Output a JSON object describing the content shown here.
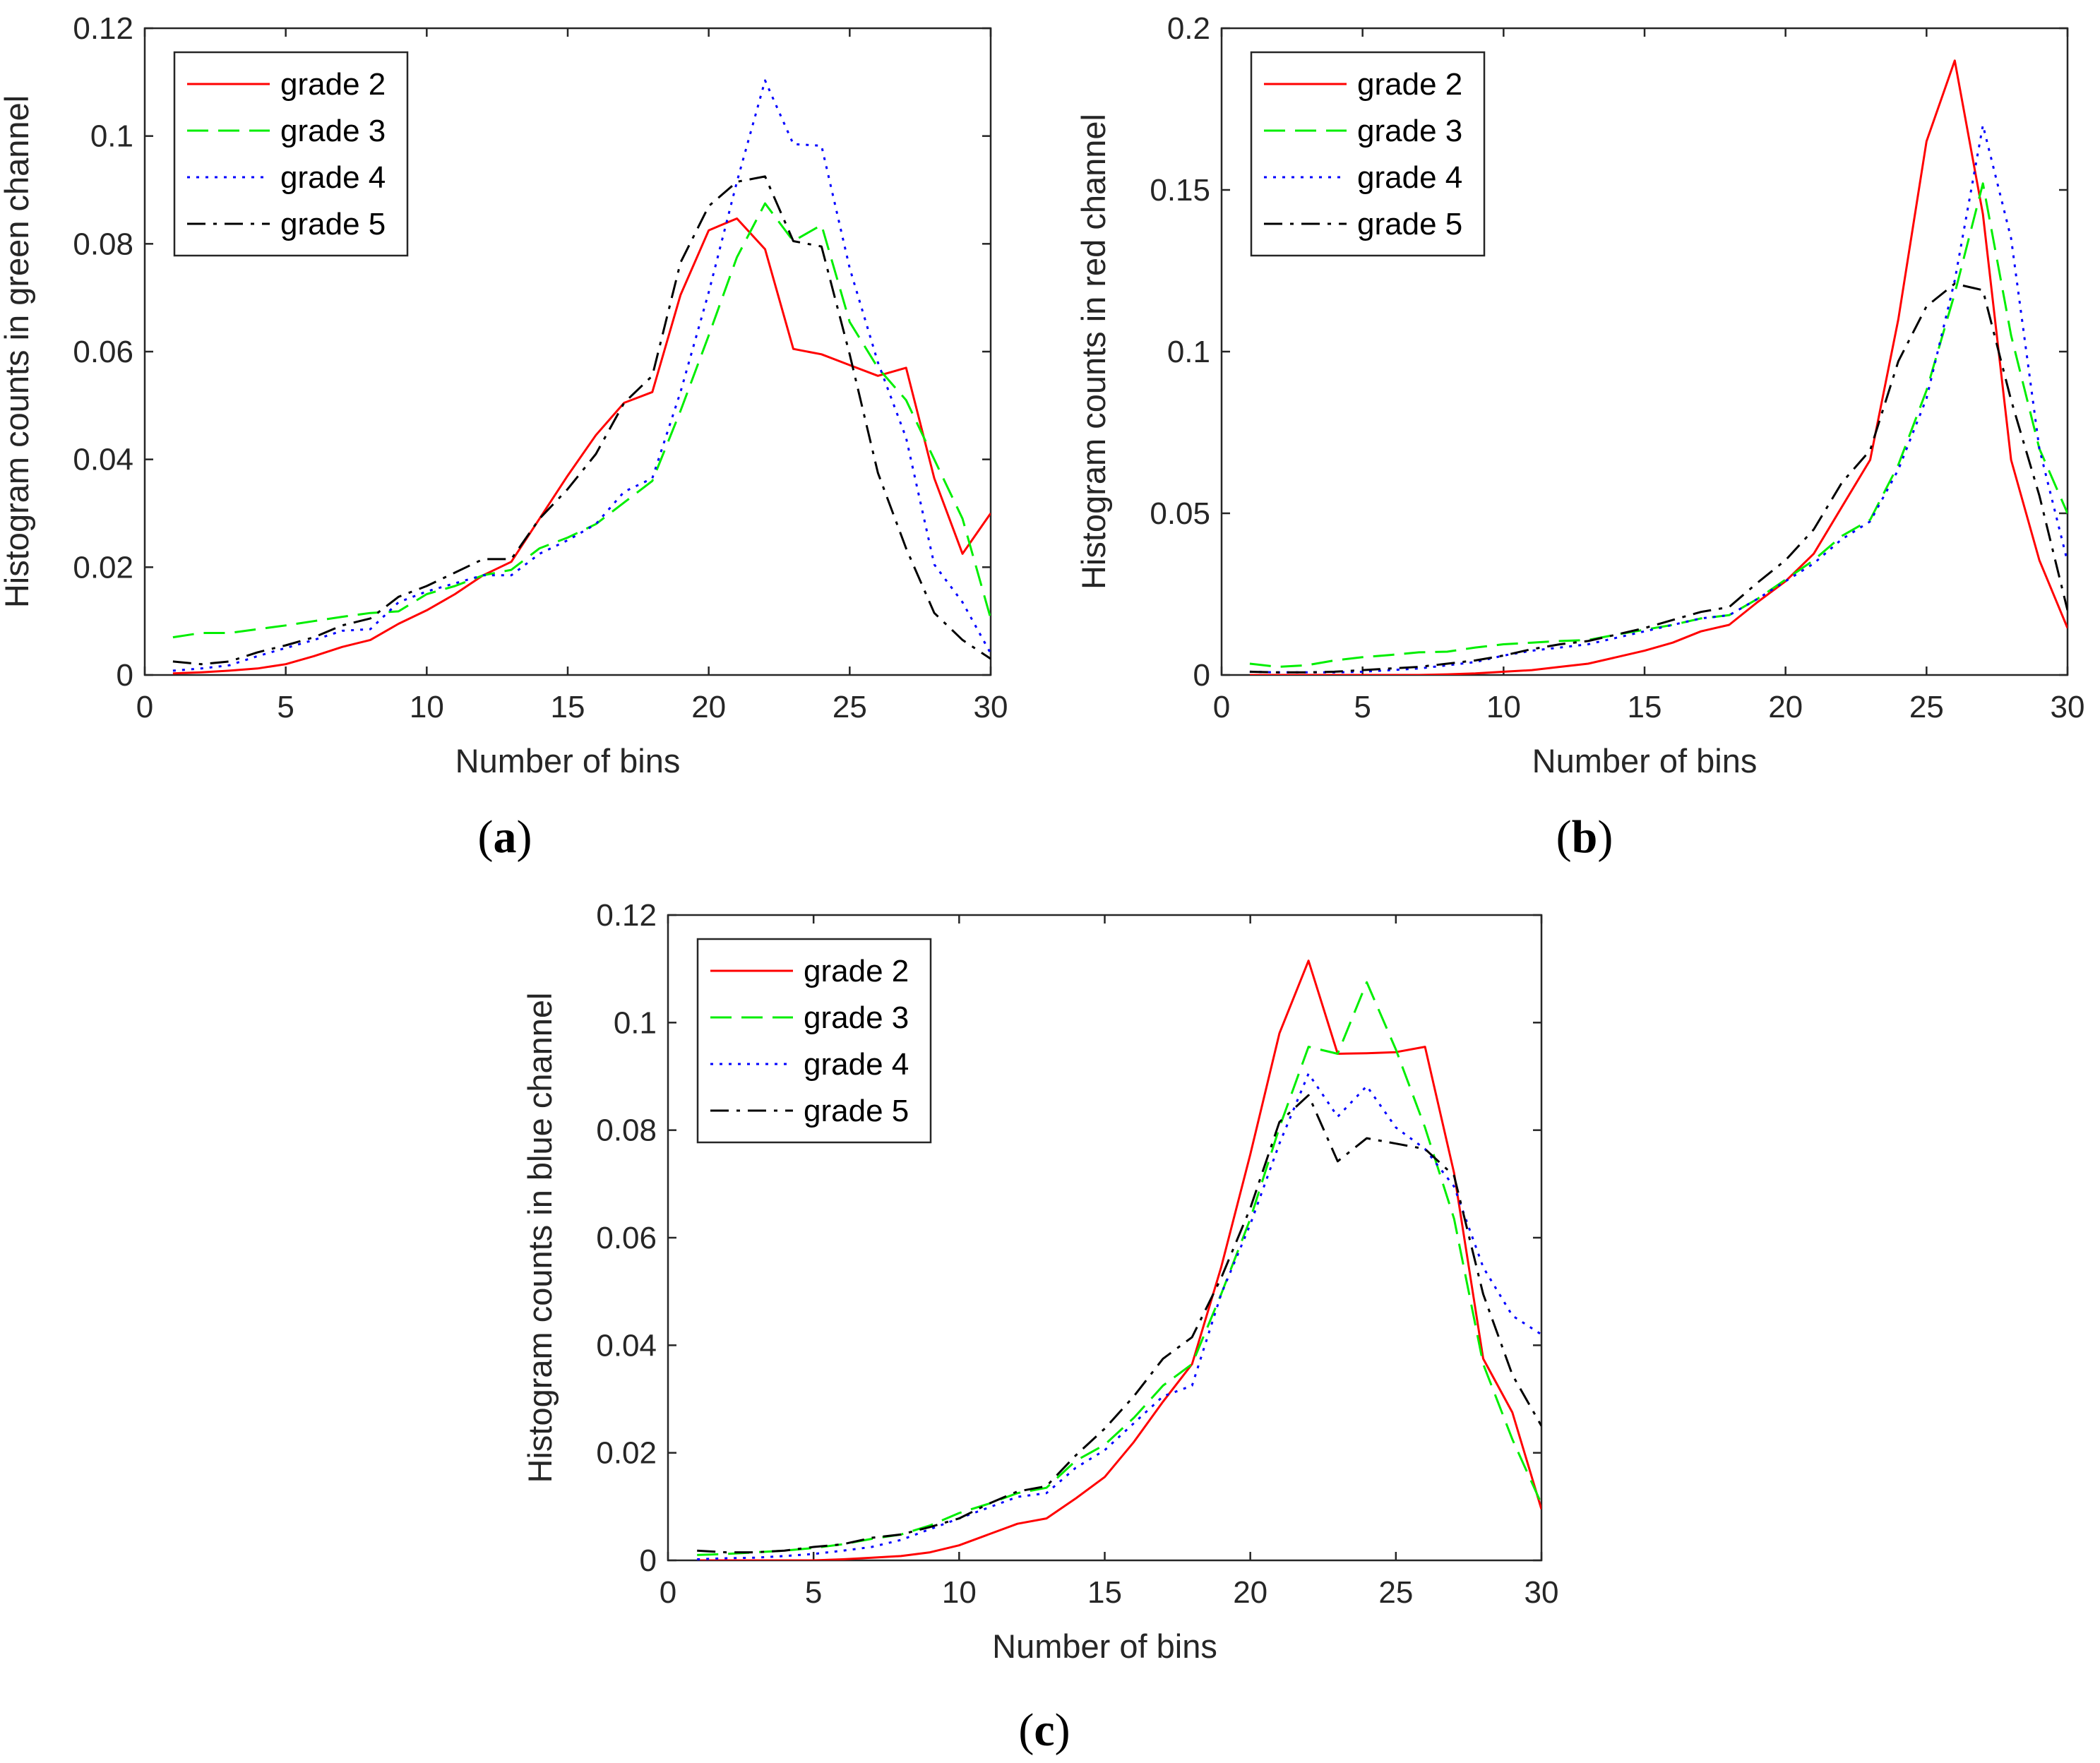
{
  "figure": {
    "panels": [
      {
        "id": "a",
        "label_open": "(",
        "label_letter": "a",
        "label_close": ")"
      },
      {
        "id": "b",
        "label_open": "(",
        "label_letter": "b",
        "label_close": ")"
      },
      {
        "id": "c",
        "label_open": "(",
        "label_letter": "c",
        "label_close": ")"
      }
    ]
  },
  "colors": {
    "grade 2": "#ff0000",
    "grade 3": "#00ee00",
    "grade 4": "#0000ff",
    "grade 5": "#000000"
  },
  "chart_data": [
    {
      "type": "line",
      "panel": "a",
      "title": "",
      "xlabel": "Number of bins",
      "ylabel": "Histogram counts in green channel",
      "xlim": [
        0,
        30
      ],
      "ylim": [
        0,
        0.12
      ],
      "xticks": [
        0,
        5,
        10,
        15,
        20,
        25,
        30
      ],
      "xtick_labels": [
        "0",
        "5",
        "10",
        "15",
        "20",
        "25",
        "30"
      ],
      "yticks": [
        0,
        0.02,
        0.04,
        0.06,
        0.08,
        0.1,
        0.12
      ],
      "ytick_labels": [
        "0",
        "0.02",
        "0.04",
        "0.06",
        "0.08",
        "0.1",
        "0.12"
      ],
      "legend_position": "top-left",
      "x": [
        1,
        2,
        3,
        4,
        5,
        6,
        7,
        8,
        9,
        10,
        11,
        12,
        13,
        14,
        15,
        16,
        17,
        18,
        19,
        20,
        21,
        22,
        23,
        24,
        25,
        26,
        27,
        28,
        29,
        30
      ],
      "series": [
        {
          "name": "grade 2",
          "style": "solid",
          "values": [
            0.0003,
            0.0005,
            0.0008,
            0.0012,
            0.002,
            0.0035,
            0.0052,
            0.0065,
            0.0095,
            0.012,
            0.015,
            0.0185,
            0.021,
            0.029,
            0.037,
            0.0445,
            0.0505,
            0.0525,
            0.0705,
            0.0825,
            0.0847,
            0.079,
            0.0605,
            0.0595,
            0.0575,
            0.0555,
            0.057,
            0.0365,
            0.0225,
            0.03
          ]
        },
        {
          "name": "grade 3",
          "style": "dashed",
          "values": [
            0.007,
            0.0078,
            0.0078,
            0.0085,
            0.0092,
            0.01,
            0.0108,
            0.0115,
            0.0118,
            0.015,
            0.0165,
            0.0185,
            0.0195,
            0.0235,
            0.0255,
            0.028,
            0.032,
            0.036,
            0.049,
            0.063,
            0.0775,
            0.0875,
            0.0805,
            0.0835,
            0.0655,
            0.057,
            0.051,
            0.04,
            0.029,
            0.0105
          ]
        },
        {
          "name": "grade 4",
          "style": "dotted",
          "values": [
            0.0008,
            0.0012,
            0.0018,
            0.0035,
            0.005,
            0.0065,
            0.0082,
            0.0085,
            0.0135,
            0.0155,
            0.017,
            0.0185,
            0.0185,
            0.0225,
            0.025,
            0.028,
            0.034,
            0.0365,
            0.0525,
            0.071,
            0.0915,
            0.1103,
            0.0985,
            0.0982,
            0.0755,
            0.058,
            0.044,
            0.0205,
            0.0135,
            0.004
          ]
        },
        {
          "name": "grade 5",
          "style": "dashdot",
          "values": [
            0.0025,
            0.002,
            0.0025,
            0.0042,
            0.0055,
            0.007,
            0.0092,
            0.0105,
            0.0145,
            0.0165,
            0.019,
            0.0215,
            0.0215,
            0.029,
            0.0345,
            0.041,
            0.0505,
            0.0555,
            0.0765,
            0.087,
            0.0915,
            0.0925,
            0.0805,
            0.0795,
            0.0595,
            0.0375,
            0.0235,
            0.0115,
            0.0065,
            0.003
          ]
        }
      ]
    },
    {
      "type": "line",
      "panel": "b",
      "title": "",
      "xlabel": "Number of bins",
      "ylabel": "Histogram counts in red channel",
      "xlim": [
        0,
        30
      ],
      "ylim": [
        0,
        0.2
      ],
      "xticks": [
        0,
        5,
        10,
        15,
        20,
        25,
        30
      ],
      "xtick_labels": [
        "0",
        "5",
        "10",
        "15",
        "20",
        "25",
        "30"
      ],
      "yticks": [
        0,
        0.05,
        0.1,
        0.15,
        0.2
      ],
      "ytick_labels": [
        "0",
        "0.05",
        "0.1",
        "0.15",
        "0.2"
      ],
      "legend_position": "top-left",
      "x": [
        1,
        2,
        3,
        4,
        5,
        6,
        7,
        8,
        9,
        10,
        11,
        12,
        13,
        14,
        15,
        16,
        17,
        18,
        19,
        20,
        21,
        22,
        23,
        24,
        25,
        26,
        27,
        28,
        29,
        30
      ],
      "series": [
        {
          "name": "grade 2",
          "style": "solid",
          "values": [
            0,
            0,
            0,
            0,
            0,
            0,
            0,
            0.0002,
            0.0005,
            0.001,
            0.0015,
            0.0025,
            0.0035,
            0.0055,
            0.0075,
            0.01,
            0.0135,
            0.0155,
            0.0225,
            0.029,
            0.0375,
            0.052,
            0.0665,
            0.11,
            0.165,
            0.19,
            0.1425,
            0.0665,
            0.0355,
            0.0145
          ]
        },
        {
          "name": "grade 3",
          "style": "dashed",
          "values": [
            0.0035,
            0.0025,
            0.003,
            0.0045,
            0.0055,
            0.0062,
            0.007,
            0.0072,
            0.0085,
            0.0095,
            0.01,
            0.0105,
            0.0108,
            0.0125,
            0.014,
            0.0155,
            0.0175,
            0.0185,
            0.0235,
            0.0295,
            0.0355,
            0.043,
            0.048,
            0.065,
            0.088,
            0.118,
            0.152,
            0.105,
            0.07,
            0.05
          ]
        },
        {
          "name": "grade 4",
          "style": "dotted",
          "values": [
            0.001,
            0.0008,
            0.0008,
            0.0008,
            0.001,
            0.0015,
            0.002,
            0.003,
            0.004,
            0.006,
            0.0075,
            0.0085,
            0.0095,
            0.0115,
            0.0135,
            0.0155,
            0.0175,
            0.0185,
            0.0235,
            0.029,
            0.0345,
            0.042,
            0.0475,
            0.0635,
            0.0855,
            0.122,
            0.17,
            0.135,
            0.07,
            0.035
          ]
        },
        {
          "name": "grade 5",
          "style": "dashdot",
          "values": [
            0.001,
            0.0008,
            0.0008,
            0.001,
            0.0015,
            0.002,
            0.0025,
            0.0035,
            0.0045,
            0.006,
            0.008,
            0.0095,
            0.0105,
            0.0125,
            0.0145,
            0.017,
            0.0195,
            0.021,
            0.0285,
            0.0355,
            0.045,
            0.0595,
            0.0695,
            0.097,
            0.114,
            0.121,
            0.119,
            0.085,
            0.0555,
            0.02
          ]
        }
      ]
    },
    {
      "type": "line",
      "panel": "c",
      "title": "",
      "xlabel": "Number of bins",
      "ylabel": "Histogram counts in blue channel",
      "xlim": [
        0,
        30
      ],
      "ylim": [
        0,
        0.12
      ],
      "xticks": [
        0,
        5,
        10,
        15,
        20,
        25,
        30
      ],
      "xtick_labels": [
        "0",
        "5",
        "10",
        "15",
        "20",
        "25",
        "30"
      ],
      "yticks": [
        0,
        0.02,
        0.04,
        0.06,
        0.08,
        0.1,
        0.12
      ],
      "ytick_labels": [
        "0",
        "0.02",
        "0.04",
        "0.06",
        "0.08",
        "0.1",
        "0.12"
      ],
      "legend_position": "top-left",
      "x": [
        1,
        2,
        3,
        4,
        5,
        6,
        7,
        8,
        9,
        10,
        11,
        12,
        13,
        14,
        15,
        16,
        17,
        18,
        19,
        20,
        21,
        22,
        23,
        24,
        25,
        26,
        27,
        28,
        29,
        30
      ],
      "series": [
        {
          "name": "grade 2",
          "style": "solid",
          "values": [
            0,
            0,
            0,
            0,
            0,
            0.0002,
            0.0005,
            0.0008,
            0.0015,
            0.0028,
            0.0048,
            0.0068,
            0.0078,
            0.0115,
            0.0155,
            0.022,
            0.0295,
            0.0365,
            0.0545,
            0.0755,
            0.098,
            0.1115,
            0.0942,
            0.0943,
            0.0945,
            0.0955,
            0.072,
            0.0375,
            0.0275,
            0.0095
          ]
        },
        {
          "name": "grade 3",
          "style": "dashed",
          "values": [
            0.001,
            0.0012,
            0.0015,
            0.0018,
            0.0023,
            0.003,
            0.004,
            0.0048,
            0.0065,
            0.0088,
            0.0105,
            0.0125,
            0.0135,
            0.0185,
            0.0215,
            0.0265,
            0.0325,
            0.0365,
            0.0495,
            0.0635,
            0.0805,
            0.0955,
            0.0942,
            0.1075,
            0.095,
            0.0805,
            0.0635,
            0.0365,
            0.0225,
            0.0105
          ]
        },
        {
          "name": "grade 4",
          "style": "dotted",
          "values": [
            0.0002,
            0.0004,
            0.0005,
            0.0008,
            0.0012,
            0.0018,
            0.0025,
            0.0038,
            0.0058,
            0.0078,
            0.0098,
            0.0118,
            0.0125,
            0.0172,
            0.0205,
            0.0255,
            0.0305,
            0.0325,
            0.0495,
            0.0625,
            0.0775,
            0.0905,
            0.0825,
            0.0882,
            0.0805,
            0.0765,
            0.0695,
            0.0545,
            0.0455,
            0.042
          ]
        },
        {
          "name": "grade 5",
          "style": "dashdot",
          "values": [
            0.0018,
            0.0015,
            0.0015,
            0.0018,
            0.0025,
            0.003,
            0.0042,
            0.0048,
            0.0062,
            0.0078,
            0.0105,
            0.0128,
            0.0138,
            0.0195,
            0.0245,
            0.0305,
            0.0375,
            0.0415,
            0.0525,
            0.0655,
            0.0815,
            0.0865,
            0.0742,
            0.0785,
            0.0775,
            0.0765,
            0.0715,
            0.0495,
            0.0345,
            0.025
          ]
        }
      ]
    }
  ]
}
